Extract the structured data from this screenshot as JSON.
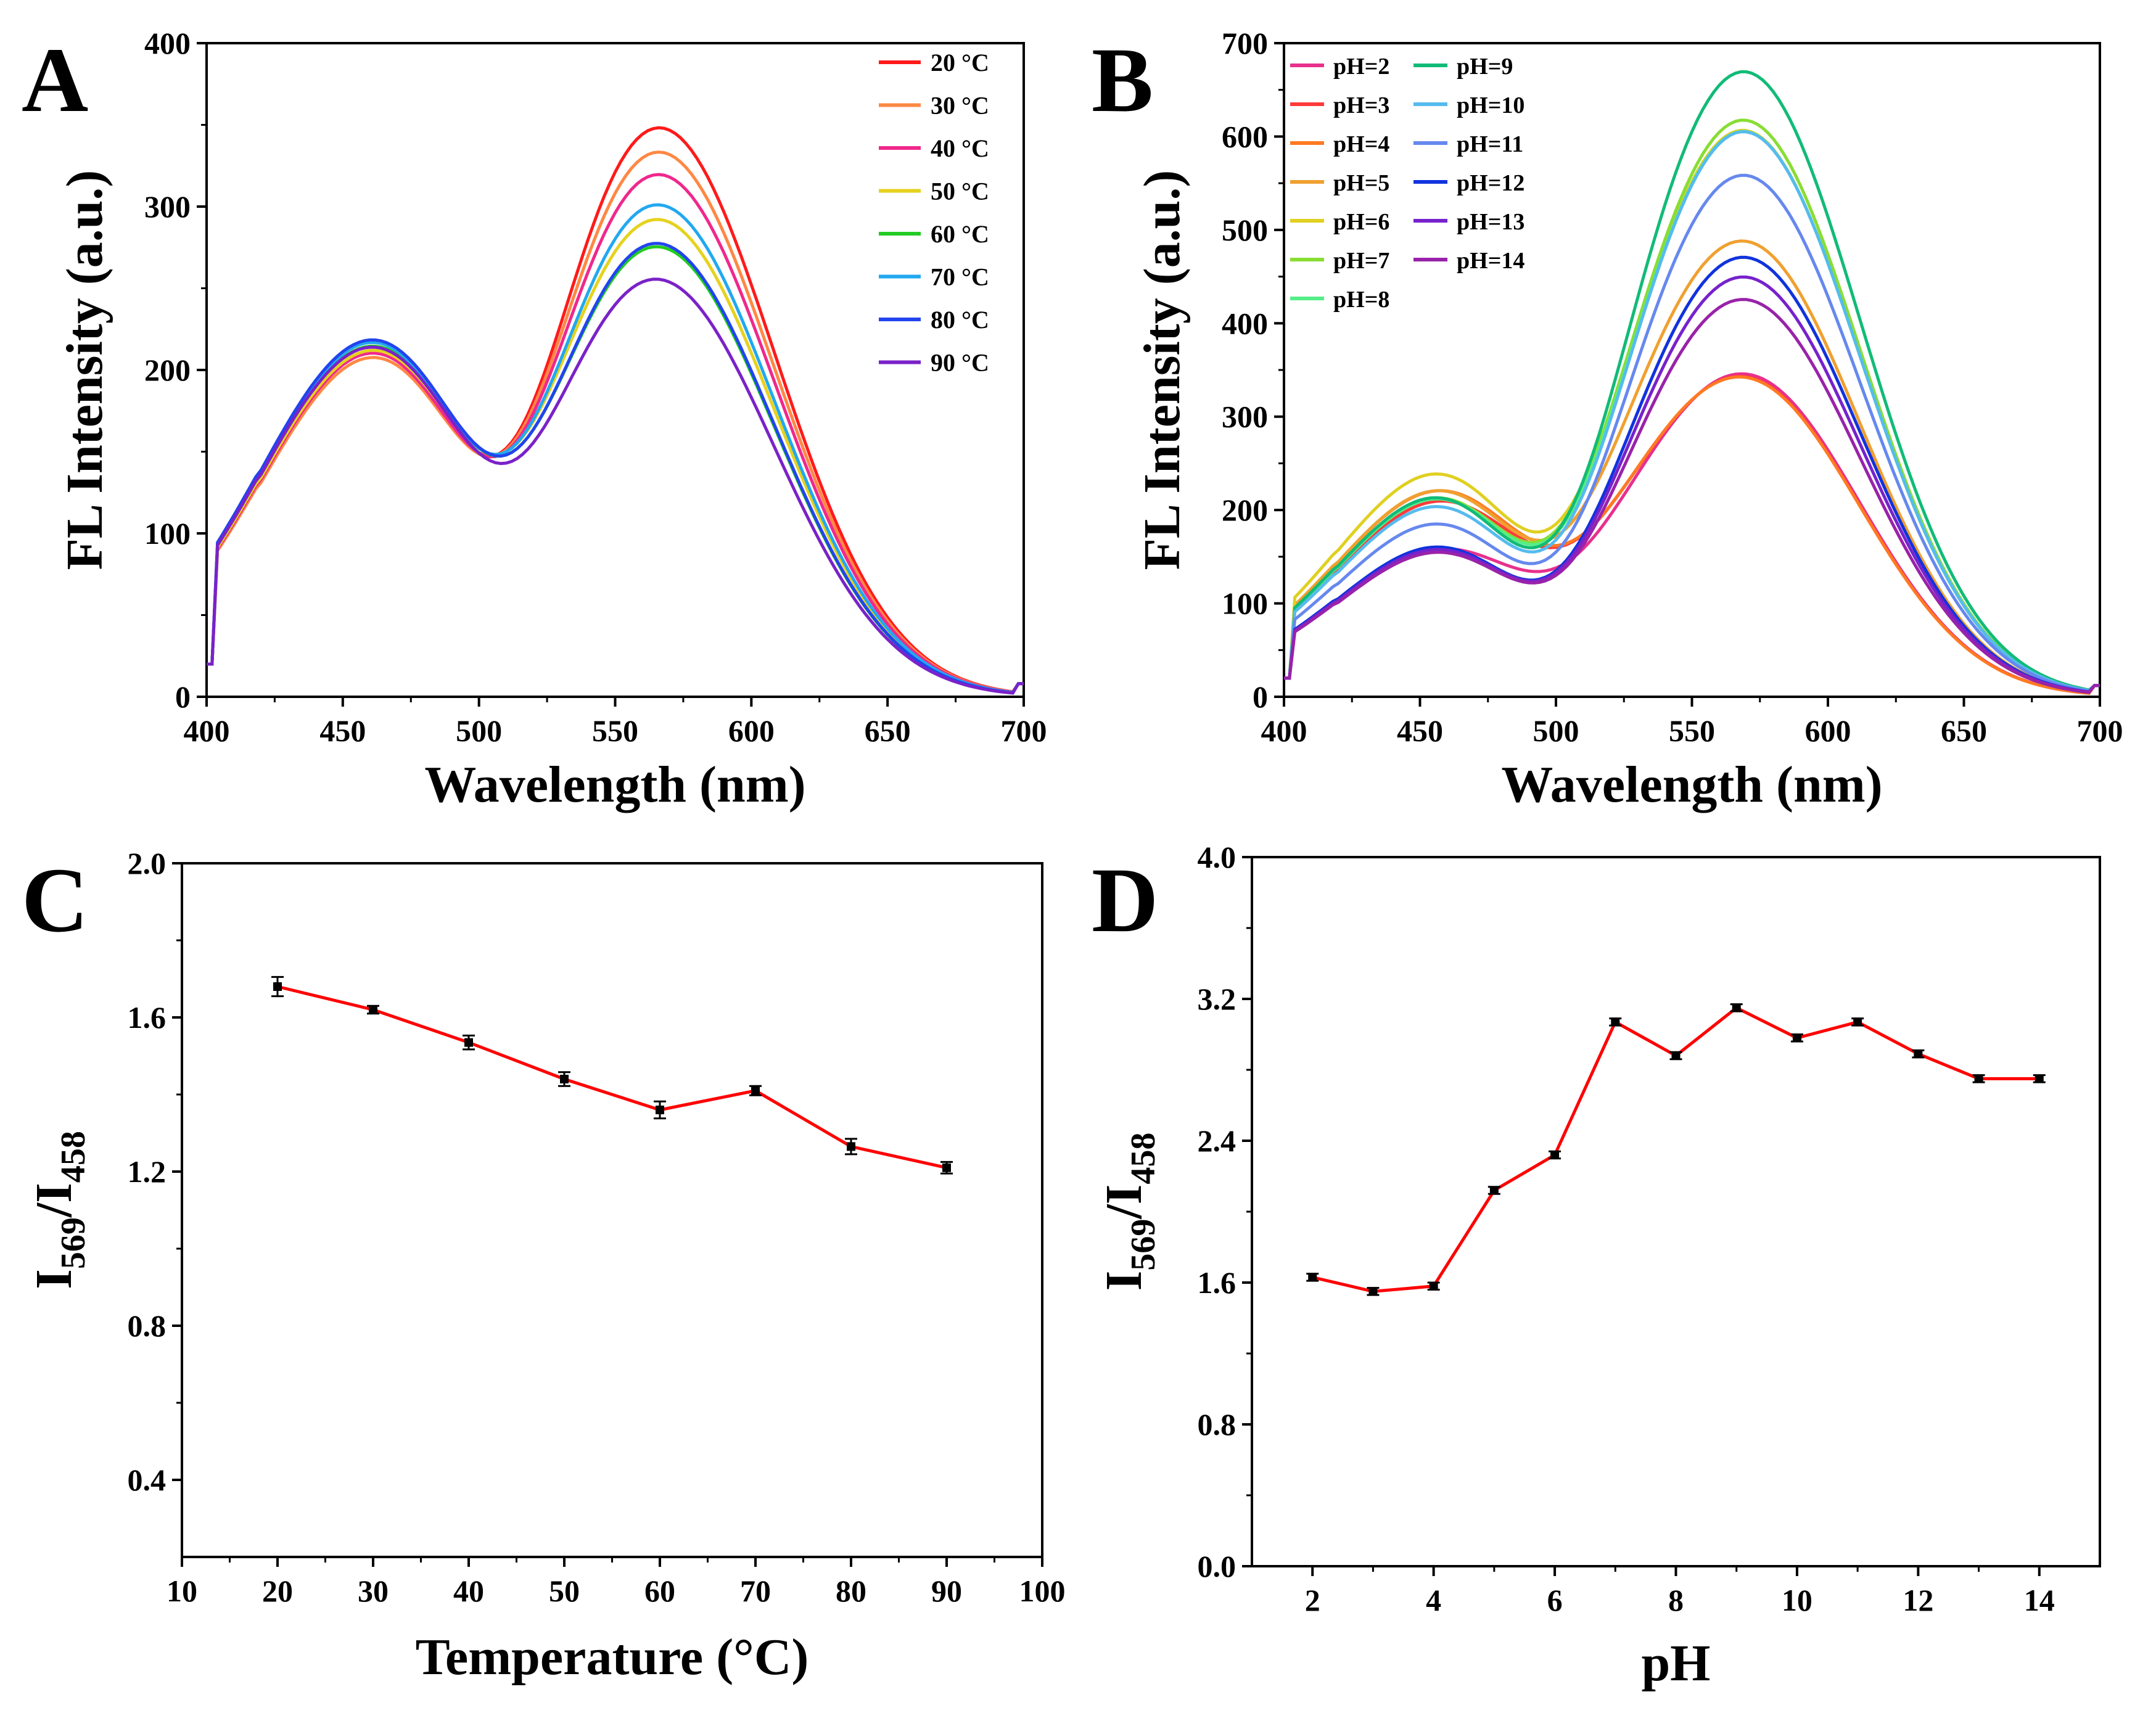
{
  "chart_data": [
    {
      "panel": "A",
      "type": "line",
      "xlabel": "Wavelength (nm)",
      "ylabel": "FL Intensity (a.u.)",
      "xlim": [
        400,
        700
      ],
      "ylim": [
        0,
        400
      ],
      "xticks": [
        400,
        450,
        500,
        550,
        600,
        650,
        700
      ],
      "yticks": [
        0,
        100,
        200,
        300,
        400
      ],
      "legend_position": "top-right",
      "series": [
        {
          "name": "20 °C",
          "color": "#ff1a1a",
          "peak1": 204,
          "valley": 152,
          "peak2": 342
        },
        {
          "name": "30 °C",
          "color": "#ff8844",
          "peak1": 201,
          "valley": 151,
          "peak2": 327
        },
        {
          "name": "40 °C",
          "color": "#f0288c",
          "peak1": 204,
          "valley": 150,
          "peak2": 313
        },
        {
          "name": "50 °C",
          "color": "#e6d21e",
          "peak1": 206,
          "valley": 150,
          "peak2": 285
        },
        {
          "name": "60 °C",
          "color": "#22cc22",
          "peak1": 209,
          "valley": 148,
          "peak2": 268
        },
        {
          "name": "70 °C",
          "color": "#22a8f0",
          "peak1": 211,
          "valley": 150,
          "peak2": 294
        },
        {
          "name": "80 °C",
          "color": "#2244ee",
          "peak1": 213,
          "valley": 148,
          "peak2": 270
        },
        {
          "name": "90 °C",
          "color": "#7a22c8",
          "peak1": 209,
          "valley": 143,
          "peak2": 248
        }
      ]
    },
    {
      "panel": "B",
      "type": "line",
      "xlabel": "Wavelength (nm)",
      "ylabel": "FL Intensity (a.u.)",
      "xlim": [
        400,
        700
      ],
      "ylim": [
        0,
        700
      ],
      "xticks": [
        400,
        450,
        500,
        550,
        600,
        650,
        700
      ],
      "yticks": [
        0,
        100,
        200,
        300,
        400,
        500,
        600,
        700
      ],
      "legend_position": "top-left",
      "series": [
        {
          "name": "pH=2",
          "color": "#e8308c",
          "peak1": 157,
          "valley": 138,
          "peak2": 340
        },
        {
          "name": "pH=3",
          "color": "#ff3a3a",
          "peak1": 210,
          "valley": 160,
          "peak2": 335
        },
        {
          "name": "pH=4",
          "color": "#ff7a22",
          "peak1": 222,
          "valley": 162,
          "peak2": 334
        },
        {
          "name": "pH=5",
          "color": "#f0a030",
          "peak1": 222,
          "valley": 172,
          "peak2": 480
        },
        {
          "name": "pH=6",
          "color": "#e0d020",
          "peak1": 241,
          "valley": 185,
          "peak2": 598
        },
        {
          "name": "pH=7",
          "color": "#88dd33",
          "peak1": 214,
          "valley": 178,
          "peak2": 610
        },
        {
          "name": "pH=8",
          "color": "#55ee88",
          "peak1": 213,
          "valley": 175,
          "peak2": 598
        },
        {
          "name": "pH=9",
          "color": "#11bb77",
          "peak1": 215,
          "valley": 175,
          "peak2": 662
        },
        {
          "name": "pH=10",
          "color": "#55bbee",
          "peak1": 205,
          "valley": 168,
          "peak2": 598
        },
        {
          "name": "pH=11",
          "color": "#6688ee",
          "peak1": 186,
          "valley": 155,
          "peak2": 552
        },
        {
          "name": "pH=12",
          "color": "#1133dd",
          "peak1": 161,
          "valley": 135,
          "peak2": 465
        },
        {
          "name": "pH=13",
          "color": "#7722cc",
          "peak1": 158,
          "valley": 133,
          "peak2": 444
        },
        {
          "name": "pH=14",
          "color": "#9922aa",
          "peak1": 155,
          "valley": 130,
          "peak2": 420
        }
      ]
    },
    {
      "panel": "C",
      "type": "line",
      "xlabel": "Temperature (°C)",
      "ylabel_main": "I",
      "ylabel_sub1": "569",
      "ylabel_slash": "/I",
      "ylabel_sub2": "458",
      "xlim": [
        10,
        100
      ],
      "ylim": [
        0.2,
        2.0
      ],
      "xticks": [
        10,
        20,
        30,
        40,
        50,
        60,
        70,
        80,
        90,
        100
      ],
      "yticks": [
        "0.4",
        "0.8",
        "1.2",
        "1.6",
        "2.0"
      ],
      "line_color": "#ff0000",
      "x": [
        20,
        30,
        40,
        50,
        60,
        70,
        80,
        90
      ],
      "y": [
        1.68,
        1.62,
        1.535,
        1.44,
        1.36,
        1.41,
        1.265,
        1.21
      ],
      "err": [
        0.025,
        0.01,
        0.018,
        0.018,
        0.022,
        0.012,
        0.02,
        0.015
      ]
    },
    {
      "panel": "D",
      "type": "line",
      "xlabel": "pH",
      "ylabel_main": "I",
      "ylabel_sub1": "569",
      "ylabel_slash": "/I",
      "ylabel_sub2": "458",
      "xlim": [
        1,
        15
      ],
      "ylim": [
        0,
        4
      ],
      "xticks": [
        2,
        4,
        6,
        8,
        10,
        12,
        14
      ],
      "yticks": [
        "0.0",
        "0.8",
        "1.6",
        "2.4",
        "3.2",
        "4.0"
      ],
      "line_color": "#ff0000",
      "x": [
        2,
        3,
        4,
        5,
        6,
        7,
        8,
        9,
        10,
        11,
        12,
        13,
        14
      ],
      "y": [
        1.63,
        1.55,
        1.58,
        2.12,
        2.32,
        3.07,
        2.88,
        3.15,
        2.98,
        3.07,
        2.89,
        2.75,
        2.75
      ],
      "err": [
        0.02,
        0.02,
        0.02,
        0.02,
        0.02,
        0.02,
        0.02,
        0.02,
        0.02,
        0.02,
        0.02,
        0.02,
        0.02
      ]
    }
  ]
}
